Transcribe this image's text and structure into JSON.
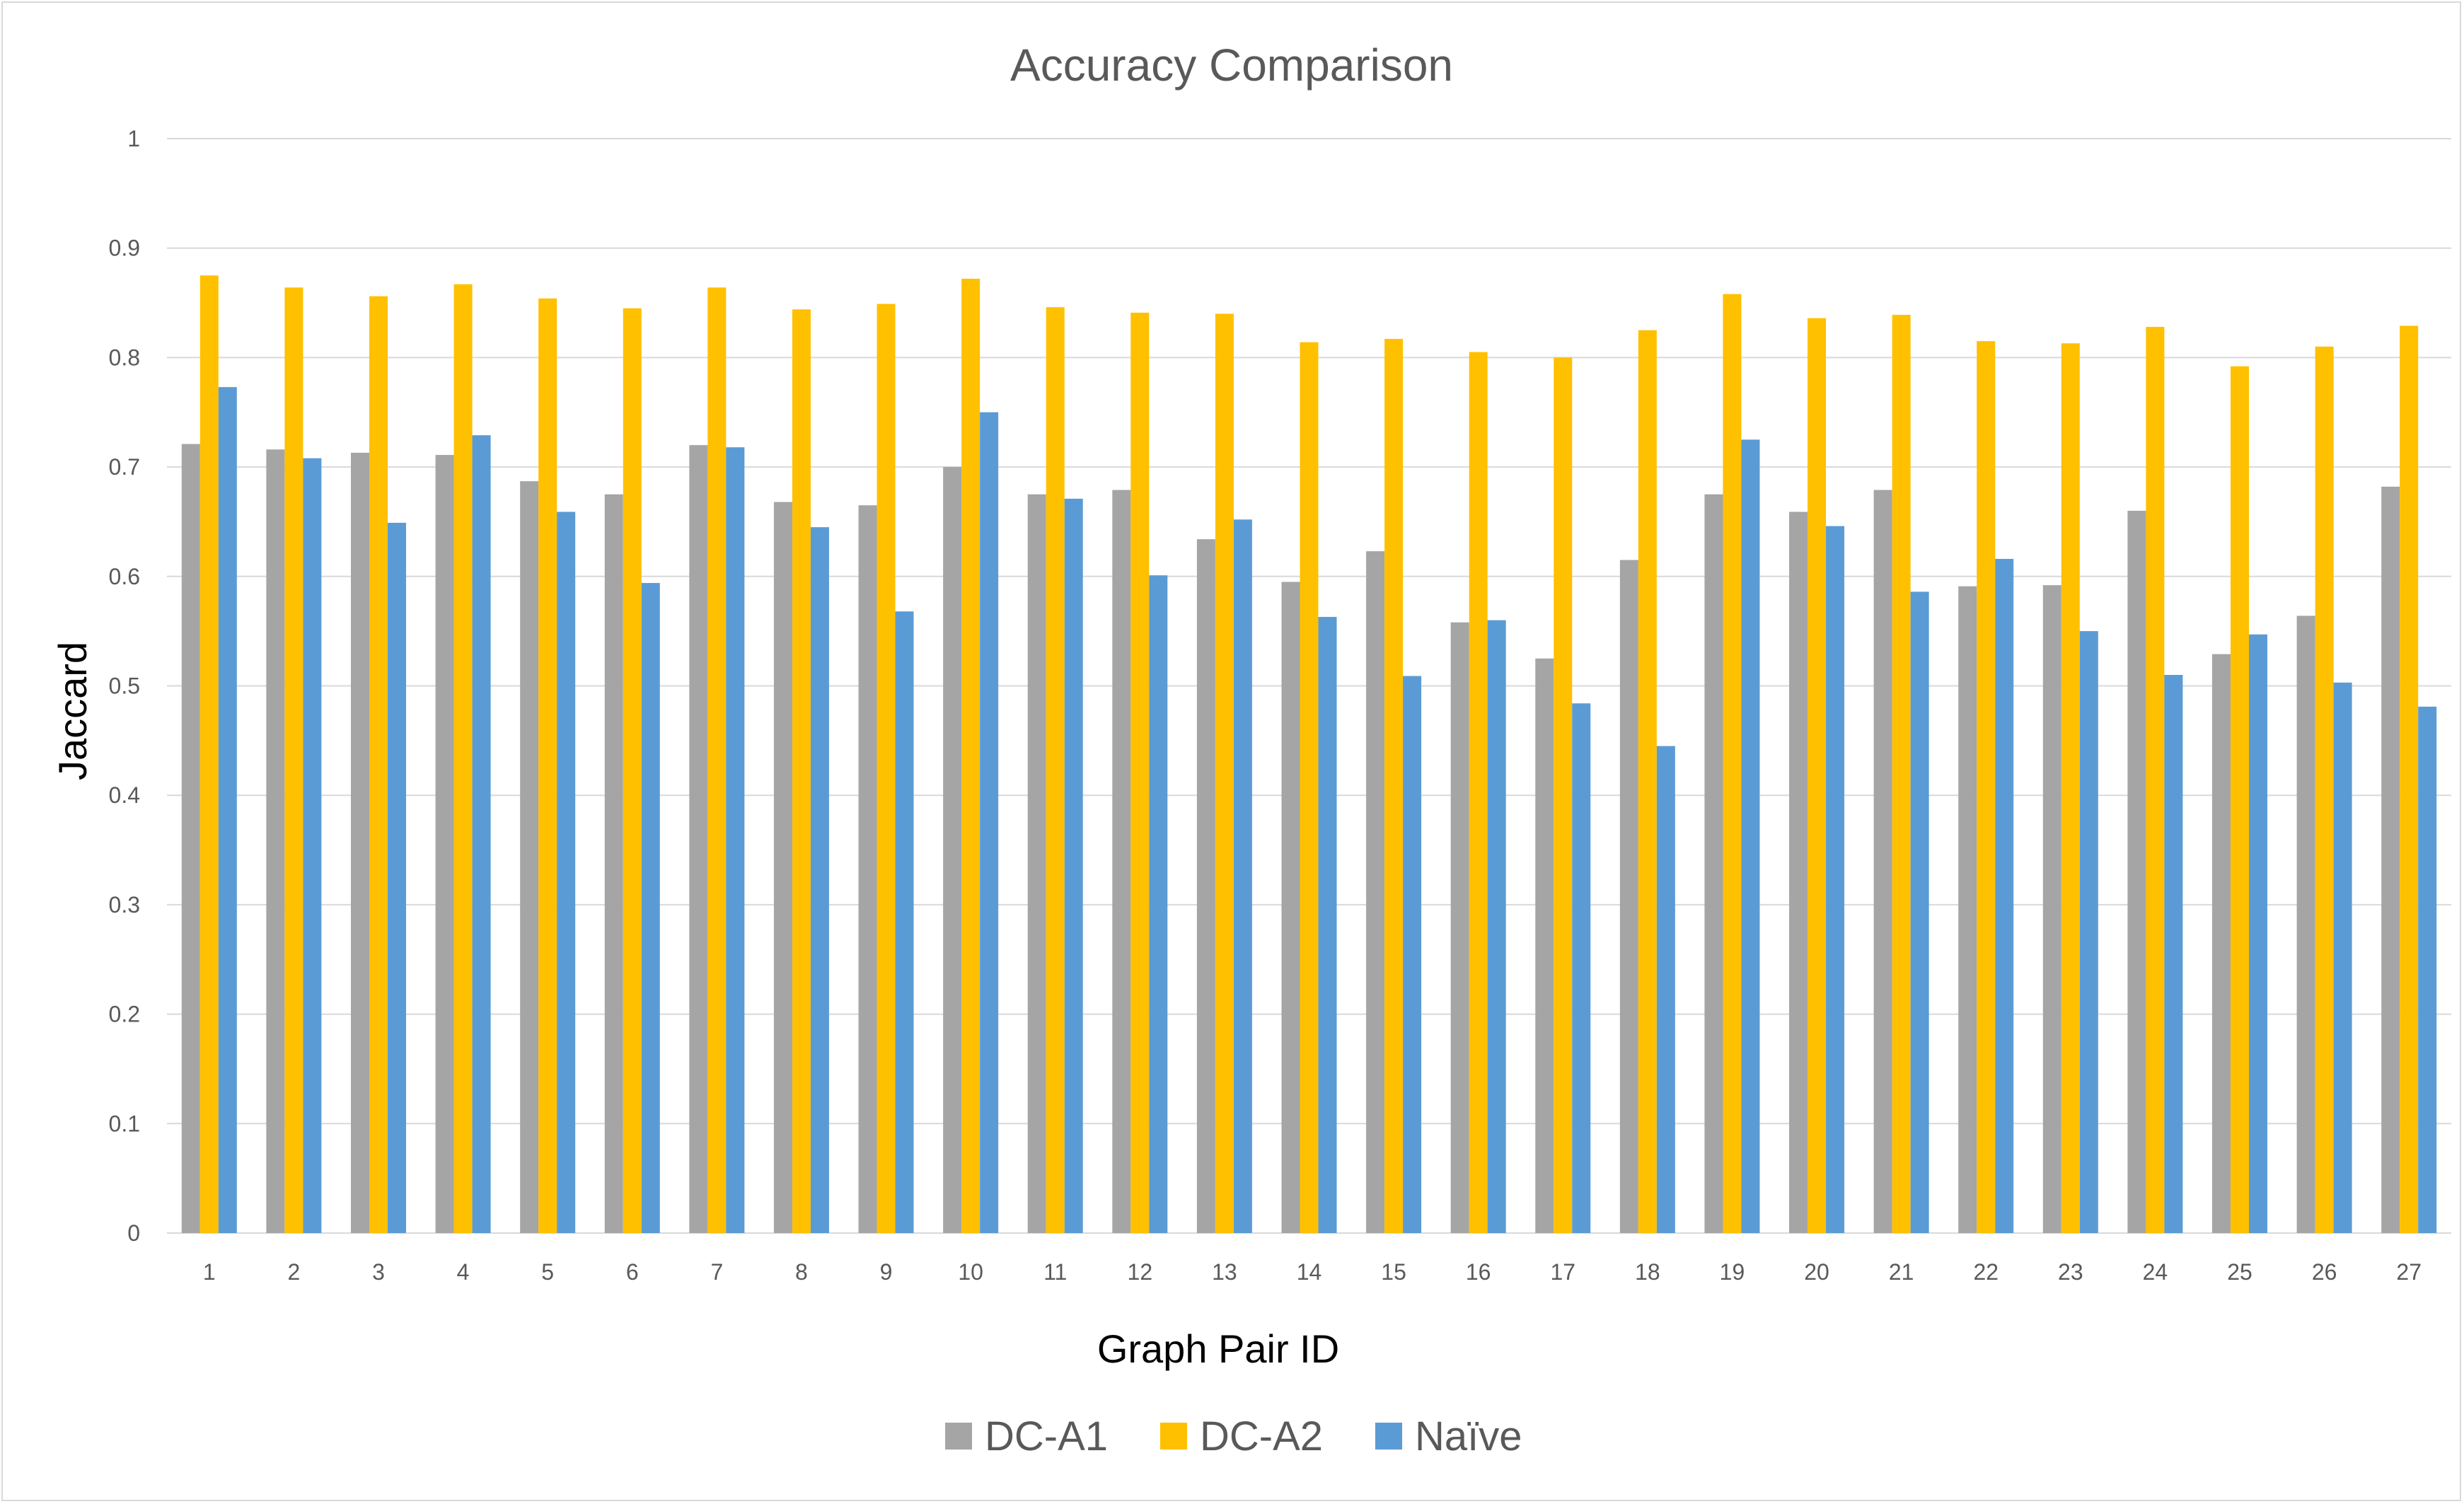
{
  "chart_data": {
    "type": "bar",
    "title": "Accuracy Comparison",
    "xlabel": "Graph Pair ID",
    "ylabel": "Jaccard",
    "ylim": [
      0,
      1
    ],
    "yticks": [
      "0",
      "0.1",
      "0.2",
      "0.3",
      "0.4",
      "0.5",
      "0.6",
      "0.7",
      "0.8",
      "0.9",
      "1"
    ],
    "grid": true,
    "legend_position": "bottom",
    "categories": [
      "1",
      "2",
      "3",
      "4",
      "5",
      "6",
      "7",
      "8",
      "9",
      "10",
      "11",
      "12",
      "13",
      "14",
      "15",
      "16",
      "17",
      "18",
      "19",
      "20",
      "21",
      "22",
      "23",
      "24",
      "25",
      "26",
      "27"
    ],
    "series": [
      {
        "name": "DC-A1",
        "color": "#a5a5a5",
        "values": [
          0.721,
          0.716,
          0.713,
          0.711,
          0.687,
          0.675,
          0.72,
          0.668,
          0.665,
          0.7,
          0.675,
          0.679,
          0.634,
          0.595,
          0.623,
          0.558,
          0.525,
          0.615,
          0.675,
          0.659,
          0.679,
          0.591,
          0.592,
          0.66,
          0.529,
          0.564,
          0.682
        ]
      },
      {
        "name": "DC-A2",
        "color": "#ffc000",
        "values": [
          0.875,
          0.864,
          0.856,
          0.867,
          0.854,
          0.845,
          0.864,
          0.844,
          0.849,
          0.872,
          0.846,
          0.841,
          0.84,
          0.814,
          0.817,
          0.805,
          0.8,
          0.825,
          0.858,
          0.836,
          0.839,
          0.815,
          0.813,
          0.828,
          0.792,
          0.81,
          0.829
        ]
      },
      {
        "name": "Naïve",
        "color": "#5b9bd5",
        "values": [
          0.773,
          0.708,
          0.649,
          0.729,
          0.659,
          0.594,
          0.718,
          0.645,
          0.568,
          0.75,
          0.671,
          0.601,
          0.652,
          0.563,
          0.509,
          0.56,
          0.484,
          0.445,
          0.725,
          0.646,
          0.586,
          0.616,
          0.55,
          0.51,
          0.547,
          0.503,
          0.481
        ]
      }
    ]
  }
}
